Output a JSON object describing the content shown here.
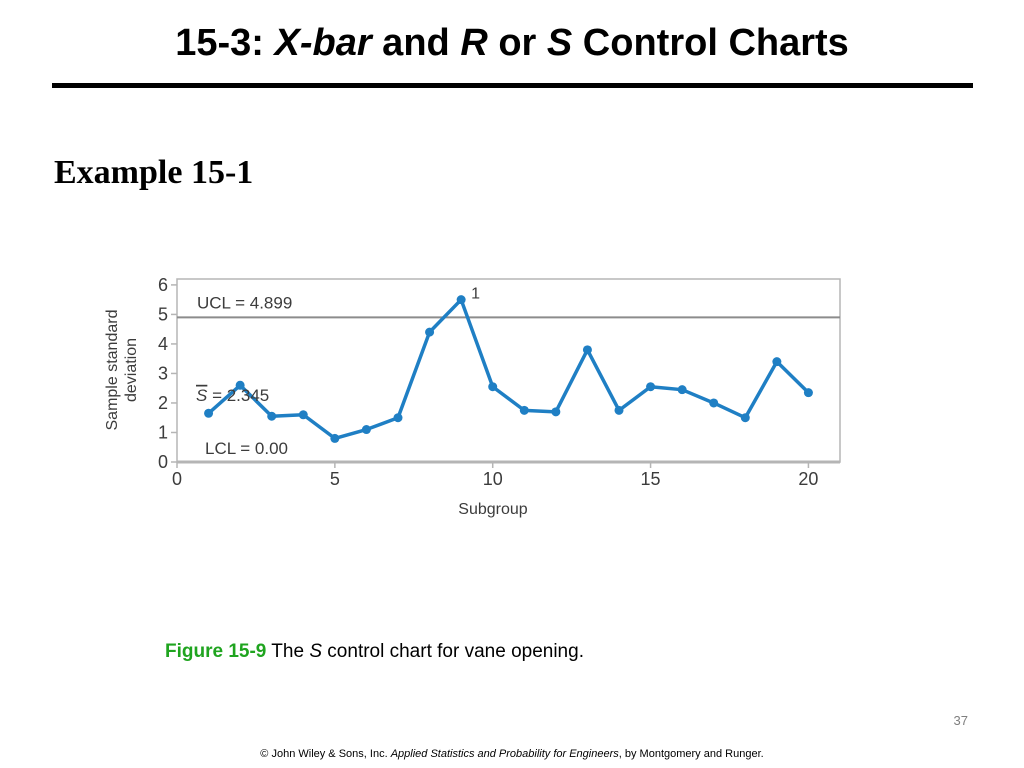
{
  "slide": {
    "title_prefix": "15-3: ",
    "title_x": "X",
    "title_dash": "-",
    "title_bar": "bar",
    "title_and": " and ",
    "title_r": "R",
    "title_or": " or ",
    "title_s": "S",
    "title_suffix": " Control Charts",
    "subheading": "Example 15-1",
    "page_number": "37"
  },
  "caption": {
    "figure_number": "Figure 15-9",
    "text_before": " The ",
    "text_symbol": "S",
    "text_after": " control chart for vane opening."
  },
  "footer": {
    "copyright": "© John Wiley & Sons, Inc.  ",
    "book": "Applied Statistics and Probability for Engineers",
    "authors": ", by Montgomery and Runger."
  },
  "chart_data": {
    "type": "line",
    "xlabel": "Subgroup",
    "ylabel_line1": "Sample standard",
    "ylabel_line2": "deviation",
    "xlim": [
      0,
      21
    ],
    "ylim": [
      0,
      6.2
    ],
    "xticks": [
      0,
      5,
      10,
      15,
      20
    ],
    "yticks": [
      0,
      1,
      2,
      3,
      4,
      5,
      6
    ],
    "x": [
      1,
      2,
      3,
      4,
      5,
      6,
      7,
      8,
      9,
      10,
      11,
      12,
      13,
      14,
      15,
      16,
      17,
      18,
      19,
      20
    ],
    "values": [
      1.65,
      2.6,
      1.55,
      1.6,
      0.8,
      1.1,
      1.5,
      4.4,
      5.5,
      2.55,
      1.75,
      1.7,
      3.8,
      1.75,
      2.55,
      2.45,
      2.0,
      1.5,
      3.4,
      2.35
    ],
    "point_annotations": [
      {
        "x": 9,
        "label": "1"
      }
    ],
    "control_lines": [
      {
        "name": "ucl",
        "value": 4.899,
        "label": "UCL = 4.899",
        "drawn": true
      },
      {
        "name": "center",
        "value": 2.345,
        "symbol": "S",
        "label_rest": " = 2.345",
        "drawn": false
      },
      {
        "name": "lcl",
        "value": 0.0,
        "label": "LCL = 0.00",
        "drawn": false
      }
    ],
    "grid": false,
    "colors": {
      "series": "#1f7fc4",
      "ucl_line": "#8c8c8c",
      "frame": "#b5b5b5",
      "text": "#3c3c3c"
    }
  }
}
